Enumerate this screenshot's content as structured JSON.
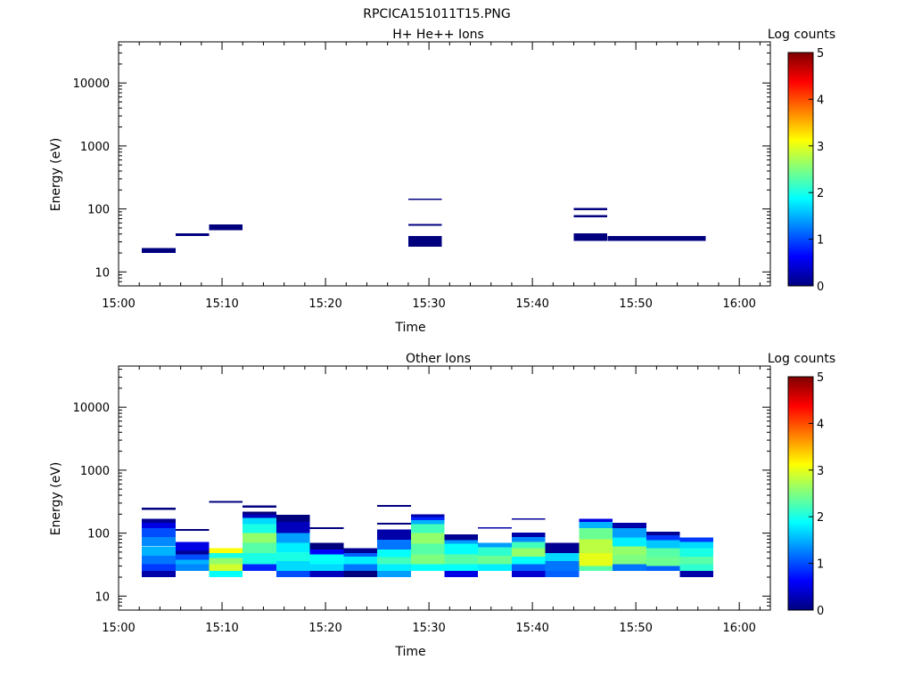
{
  "figure_title": "RPCICA151011T15.PNG",
  "colors": {
    "frame": "#000000",
    "background": "#ffffff",
    "colormap": [
      "#00007f",
      "#0000ff",
      "#007fff",
      "#00ffff",
      "#7fff7f",
      "#ffff00",
      "#ff7f00",
      "#ff0000",
      "#7f0000"
    ]
  },
  "chart_data": [
    {
      "type": "heatmap",
      "panel": "top",
      "title": "H+ He++ Ions",
      "xlabel": "Time",
      "ylabel": "Energy (eV)",
      "xscale": "time",
      "yscale": "log",
      "xlim": [
        "15:00",
        "16:03"
      ],
      "ylim": [
        6,
        45000
      ],
      "xticks": [
        "15:00",
        "15:10",
        "15:20",
        "15:30",
        "15:40",
        "15:50",
        "16:00"
      ],
      "yticks": [
        "10",
        "100",
        "1000",
        "10000"
      ],
      "colorbar": {
        "label": "Log counts",
        "range": [
          0,
          5
        ],
        "ticks": [
          "0",
          "1",
          "2",
          "3",
          "4",
          "5"
        ]
      },
      "cells": [
        {
          "t0": "15:02:15",
          "t1": "15:05:30",
          "e0": 20,
          "e1": 24,
          "v": 0
        },
        {
          "t0": "15:05:30",
          "t1": "15:08:45",
          "e0": 37,
          "e1": 41,
          "v": 0
        },
        {
          "t0": "15:08:45",
          "t1": "15:12:00",
          "e0": 46,
          "e1": 57,
          "v": 0
        },
        {
          "t0": "15:28:00",
          "t1": "15:31:15",
          "e0": 140,
          "e1": 146,
          "v": 0
        },
        {
          "t0": "15:28:00",
          "t1": "15:31:15",
          "e0": 54,
          "e1": 58,
          "v": 0
        },
        {
          "t0": "15:28:00",
          "t1": "15:31:15",
          "e0": 25,
          "e1": 37,
          "v": 0
        },
        {
          "t0": "15:44:00",
          "t1": "15:47:15",
          "e0": 96,
          "e1": 103,
          "v": 0
        },
        {
          "t0": "15:44:00",
          "t1": "15:47:15",
          "e0": 74,
          "e1": 80,
          "v": 0
        },
        {
          "t0": "15:44:00",
          "t1": "15:47:15",
          "e0": 31,
          "e1": 41,
          "v": 0
        },
        {
          "t0": "15:47:15",
          "t1": "15:56:45",
          "e0": 31,
          "e1": 37,
          "v": 0
        }
      ]
    },
    {
      "type": "heatmap",
      "panel": "bottom",
      "title": "Other Ions",
      "xlabel": "Time",
      "ylabel": "Energy (eV)",
      "xscale": "time",
      "yscale": "log",
      "xlim": [
        "15:00",
        "16:03"
      ],
      "ylim": [
        6,
        45000
      ],
      "xticks": [
        "15:00",
        "15:10",
        "15:20",
        "15:30",
        "15:40",
        "15:50",
        "16:00"
      ],
      "yticks": [
        "10",
        "100",
        "1000",
        "10000"
      ],
      "colorbar": {
        "label": "Log counts",
        "range": [
          0,
          5
        ],
        "ticks": [
          "0",
          "1",
          "2",
          "3",
          "4",
          "5"
        ]
      },
      "columns": [
        {
          "t0": "15:02:15",
          "t1": "15:05:30",
          "bins": [
            {
              "e0": 20,
              "e1": 25,
              "v": 0.2
            },
            {
              "e0": 25,
              "e1": 32,
              "v": 0.9
            },
            {
              "e0": 32,
              "e1": 44,
              "v": 1.2
            },
            {
              "e0": 44,
              "e1": 62,
              "v": 1.5
            },
            {
              "e0": 62,
              "e1": 86,
              "v": 1.3
            },
            {
              "e0": 86,
              "e1": 120,
              "v": 1.0
            },
            {
              "e0": 120,
              "e1": 145,
              "v": 0.5
            },
            {
              "e0": 145,
              "e1": 170,
              "v": 0.1
            },
            {
              "e0": 235,
              "e1": 255,
              "v": 0.0
            }
          ]
        },
        {
          "t0": "15:05:30",
          "t1": "15:08:45",
          "bins": [
            {
              "e0": 25,
              "e1": 32,
              "v": 1.3
            },
            {
              "e0": 32,
              "e1": 38,
              "v": 1.5
            },
            {
              "e0": 38,
              "e1": 46,
              "v": 1.0
            },
            {
              "e0": 46,
              "e1": 52,
              "v": 0.1
            },
            {
              "e0": 52,
              "e1": 72,
              "v": 0.5
            },
            {
              "e0": 108,
              "e1": 116,
              "v": 0.0
            }
          ]
        },
        {
          "t0": "15:08:45",
          "t1": "15:12:00",
          "bins": [
            {
              "e0": 20,
              "e1": 25,
              "v": 1.9
            },
            {
              "e0": 25,
              "e1": 32,
              "v": 2.9
            },
            {
              "e0": 32,
              "e1": 40,
              "v": 2.6
            },
            {
              "e0": 40,
              "e1": 48,
              "v": 2.0
            },
            {
              "e0": 48,
              "e1": 58,
              "v": 3.1
            },
            {
              "e0": 305,
              "e1": 325,
              "v": 0.0
            }
          ]
        },
        {
          "t0": "15:12:00",
          "t1": "15:15:15",
          "bins": [
            {
              "e0": 25,
              "e1": 32,
              "v": 0.8
            },
            {
              "e0": 32,
              "e1": 48,
              "v": 2.0
            },
            {
              "e0": 48,
              "e1": 70,
              "v": 2.3
            },
            {
              "e0": 70,
              "e1": 100,
              "v": 2.6
            },
            {
              "e0": 100,
              "e1": 140,
              "v": 2.0
            },
            {
              "e0": 140,
              "e1": 175,
              "v": 1.7
            },
            {
              "e0": 175,
              "e1": 200,
              "v": 0.3
            },
            {
              "e0": 200,
              "e1": 220,
              "v": 0.0
            },
            {
              "e0": 255,
              "e1": 275,
              "v": 0.0
            }
          ]
        },
        {
          "t0": "15:15:15",
          "t1": "15:18:30",
          "bins": [
            {
              "e0": 20,
              "e1": 25,
              "v": 1.0
            },
            {
              "e0": 25,
              "e1": 36,
              "v": 1.7
            },
            {
              "e0": 36,
              "e1": 50,
              "v": 2.0
            },
            {
              "e0": 50,
              "e1": 70,
              "v": 1.8
            },
            {
              "e0": 70,
              "e1": 100,
              "v": 1.4
            },
            {
              "e0": 100,
              "e1": 150,
              "v": 0.3
            },
            {
              "e0": 150,
              "e1": 195,
              "v": 0.0
            }
          ]
        },
        {
          "t0": "15:18:30",
          "t1": "15:21:45",
          "bins": [
            {
              "e0": 20,
              "e1": 25,
              "v": 0.3
            },
            {
              "e0": 25,
              "e1": 32,
              "v": 1.7
            },
            {
              "e0": 32,
              "e1": 46,
              "v": 1.9
            },
            {
              "e0": 46,
              "e1": 55,
              "v": 0.6
            },
            {
              "e0": 55,
              "e1": 70,
              "v": 0.0
            },
            {
              "e0": 116,
              "e1": 124,
              "v": 0.0
            }
          ]
        },
        {
          "t0": "15:21:45",
          "t1": "15:25:00",
          "bins": [
            {
              "e0": 20,
              "e1": 25,
              "v": 0.0
            },
            {
              "e0": 25,
              "e1": 32,
              "v": 1.2
            },
            {
              "e0": 32,
              "e1": 42,
              "v": 1.8
            },
            {
              "e0": 42,
              "e1": 48,
              "v": 1.1
            },
            {
              "e0": 48,
              "e1": 58,
              "v": 0.1
            }
          ]
        },
        {
          "t0": "15:25:00",
          "t1": "15:28:15",
          "bins": [
            {
              "e0": 20,
              "e1": 25,
              "v": 1.4
            },
            {
              "e0": 25,
              "e1": 32,
              "v": 1.8
            },
            {
              "e0": 32,
              "e1": 42,
              "v": 2.2
            },
            {
              "e0": 42,
              "e1": 55,
              "v": 1.9
            },
            {
              "e0": 55,
              "e1": 78,
              "v": 1.2
            },
            {
              "e0": 78,
              "e1": 115,
              "v": 0.2
            },
            {
              "e0": 136,
              "e1": 146,
              "v": 0.0
            },
            {
              "e0": 262,
              "e1": 278,
              "v": 0.0
            }
          ]
        },
        {
          "t0": "15:28:15",
          "t1": "15:31:30",
          "bins": [
            {
              "e0": 25,
              "e1": 32,
              "v": 1.9
            },
            {
              "e0": 32,
              "e1": 46,
              "v": 2.5
            },
            {
              "e0": 46,
              "e1": 68,
              "v": 2.3
            },
            {
              "e0": 68,
              "e1": 100,
              "v": 2.6
            },
            {
              "e0": 100,
              "e1": 140,
              "v": 2.2
            },
            {
              "e0": 140,
              "e1": 160,
              "v": 1.5
            },
            {
              "e0": 160,
              "e1": 180,
              "v": 0.8
            },
            {
              "e0": 180,
              "e1": 200,
              "v": 0.2
            }
          ]
        },
        {
          "t0": "15:31:30",
          "t1": "15:34:45",
          "bins": [
            {
              "e0": 20,
              "e1": 25,
              "v": 0.5
            },
            {
              "e0": 25,
              "e1": 32,
              "v": 1.9
            },
            {
              "e0": 32,
              "e1": 46,
              "v": 2.3
            },
            {
              "e0": 46,
              "e1": 68,
              "v": 1.9
            },
            {
              "e0": 68,
              "e1": 78,
              "v": 1.4
            },
            {
              "e0": 78,
              "e1": 95,
              "v": 0.1
            }
          ]
        },
        {
          "t0": "15:34:45",
          "t1": "15:38:00",
          "bins": [
            {
              "e0": 25,
              "e1": 32,
              "v": 1.8
            },
            {
              "e0": 32,
              "e1": 44,
              "v": 2.4
            },
            {
              "e0": 44,
              "e1": 60,
              "v": 2.1
            },
            {
              "e0": 60,
              "e1": 70,
              "v": 1.4
            },
            {
              "e0": 117,
              "e1": 123,
              "v": 0.2
            }
          ]
        },
        {
          "t0": "15:38:00",
          "t1": "15:41:15",
          "bins": [
            {
              "e0": 20,
              "e1": 25,
              "v": 0.4
            },
            {
              "e0": 25,
              "e1": 32,
              "v": 1.1
            },
            {
              "e0": 32,
              "e1": 42,
              "v": 1.9
            },
            {
              "e0": 42,
              "e1": 58,
              "v": 2.6
            },
            {
              "e0": 58,
              "e1": 72,
              "v": 2.2
            },
            {
              "e0": 72,
              "e1": 86,
              "v": 1.3
            },
            {
              "e0": 86,
              "e1": 102,
              "v": 0.2
            },
            {
              "e0": 165,
              "e1": 172,
              "v": 0.1
            }
          ]
        },
        {
          "t0": "15:41:15",
          "t1": "15:44:30",
          "bins": [
            {
              "e0": 20,
              "e1": 25,
              "v": 1.1
            },
            {
              "e0": 25,
              "e1": 36,
              "v": 1.2
            },
            {
              "e0": 36,
              "e1": 48,
              "v": 1.7
            },
            {
              "e0": 48,
              "e1": 70,
              "v": 0.1
            }
          ]
        },
        {
          "t0": "15:44:30",
          "t1": "15:47:45",
          "bins": [
            {
              "e0": 25,
              "e1": 30,
              "v": 2.3
            },
            {
              "e0": 30,
              "e1": 48,
              "v": 3.0
            },
            {
              "e0": 48,
              "e1": 80,
              "v": 2.8
            },
            {
              "e0": 80,
              "e1": 120,
              "v": 2.4
            },
            {
              "e0": 120,
              "e1": 150,
              "v": 1.5
            },
            {
              "e0": 150,
              "e1": 170,
              "v": 0.5
            }
          ]
        },
        {
          "t0": "15:47:45",
          "t1": "15:51:00",
          "bins": [
            {
              "e0": 25,
              "e1": 32,
              "v": 1.2
            },
            {
              "e0": 32,
              "e1": 45,
              "v": 2.5
            },
            {
              "e0": 45,
              "e1": 62,
              "v": 2.6
            },
            {
              "e0": 62,
              "e1": 85,
              "v": 1.8
            },
            {
              "e0": 85,
              "e1": 120,
              "v": 1.4
            },
            {
              "e0": 120,
              "e1": 145,
              "v": 0.2
            }
          ]
        },
        {
          "t0": "15:51:00",
          "t1": "15:54:15",
          "bins": [
            {
              "e0": 25,
              "e1": 30,
              "v": 1.1
            },
            {
              "e0": 30,
              "e1": 42,
              "v": 2.4
            },
            {
              "e0": 42,
              "e1": 58,
              "v": 2.3
            },
            {
              "e0": 58,
              "e1": 78,
              "v": 1.6
            },
            {
              "e0": 78,
              "e1": 92,
              "v": 0.9
            },
            {
              "e0": 92,
              "e1": 105,
              "v": 0.1
            }
          ]
        },
        {
          "t0": "15:54:15",
          "t1": "15:57:30",
          "bins": [
            {
              "e0": 20,
              "e1": 25,
              "v": 0.2
            },
            {
              "e0": 25,
              "e1": 32,
              "v": 2.1
            },
            {
              "e0": 32,
              "e1": 42,
              "v": 2.3
            },
            {
              "e0": 42,
              "e1": 58,
              "v": 2.0
            },
            {
              "e0": 58,
              "e1": 72,
              "v": 1.7
            },
            {
              "e0": 72,
              "e1": 85,
              "v": 0.9
            }
          ]
        }
      ]
    }
  ]
}
